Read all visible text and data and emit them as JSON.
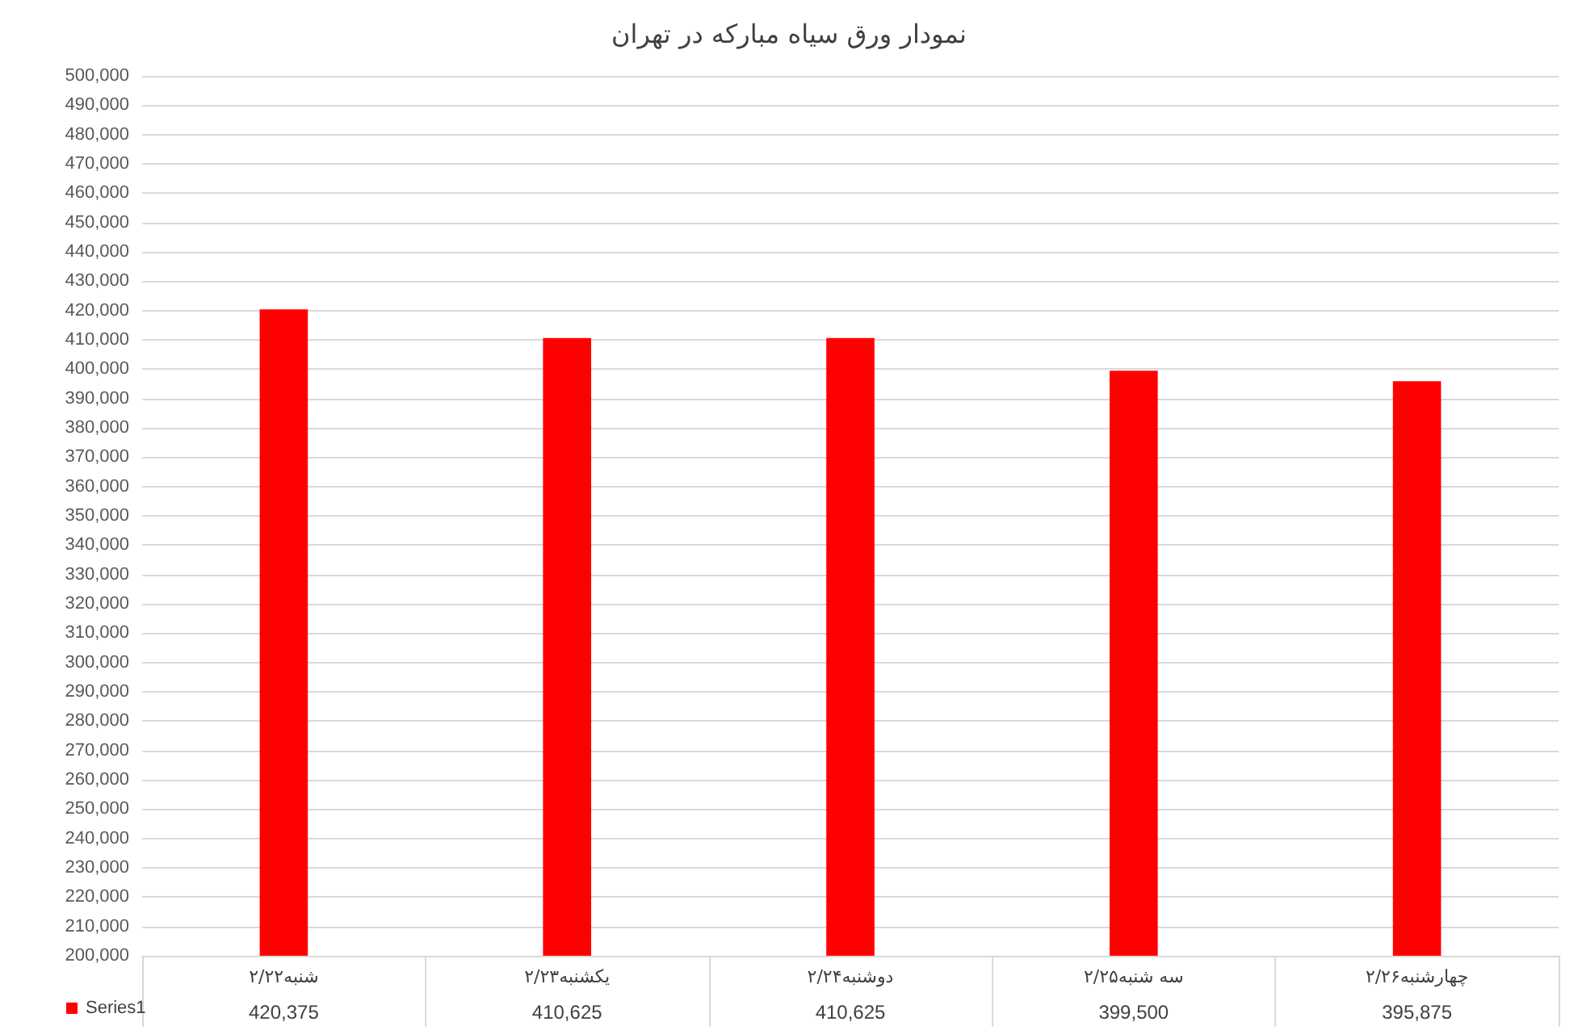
{
  "chart_data": {
    "type": "bar",
    "title": "نمودار ورق سیاه مبارکه در تهران",
    "categories": [
      "شنبه۲/۲۲",
      "یکشنبه۲/۲۳",
      "دوشنبه۲/۲۴",
      "سه شنبه۲/۲۵",
      "چهارشنبه۲/۲۶"
    ],
    "series": [
      {
        "name": "Series1",
        "color": "#ff0000",
        "values": [
          420375,
          410625,
          410625,
          399500,
          395875
        ],
        "value_labels": [
          "420,375",
          "410,625",
          "410,625",
          "399,500",
          "395,875"
        ]
      }
    ],
    "ylim": [
      200000,
      500000
    ],
    "yticks": [
      {
        "value": 200000,
        "label": "200,000"
      },
      {
        "value": 210000,
        "label": "210,000"
      },
      {
        "value": 220000,
        "label": "220,000"
      },
      {
        "value": 230000,
        "label": "230,000"
      },
      {
        "value": 240000,
        "label": "240,000"
      },
      {
        "value": 250000,
        "label": "250,000"
      },
      {
        "value": 260000,
        "label": "260,000"
      },
      {
        "value": 270000,
        "label": "270,000"
      },
      {
        "value": 280000,
        "label": "280,000"
      },
      {
        "value": 290000,
        "label": "290,000"
      },
      {
        "value": 300000,
        "label": "300,000"
      },
      {
        "value": 310000,
        "label": "310,000"
      },
      {
        "value": 320000,
        "label": "320,000"
      },
      {
        "value": 330000,
        "label": "330,000"
      },
      {
        "value": 340000,
        "label": "340,000"
      },
      {
        "value": 350000,
        "label": "350,000"
      },
      {
        "value": 360000,
        "label": "360,000"
      },
      {
        "value": 370000,
        "label": "370,000"
      },
      {
        "value": 380000,
        "label": "380,000"
      },
      {
        "value": 390000,
        "label": "390,000"
      },
      {
        "value": 400000,
        "label": "400,000"
      },
      {
        "value": 410000,
        "label": "410,000"
      },
      {
        "value": 420000,
        "label": "420,000"
      },
      {
        "value": 430000,
        "label": "430,000"
      },
      {
        "value": 440000,
        "label": "440,000"
      },
      {
        "value": 450000,
        "label": "450,000"
      },
      {
        "value": 460000,
        "label": "460,000"
      },
      {
        "value": 470000,
        "label": "470,000"
      },
      {
        "value": 480000,
        "label": "480,000"
      },
      {
        "value": 490000,
        "label": "490,000"
      },
      {
        "value": 500000,
        "label": "500,000"
      }
    ],
    "grid": "y",
    "legend": "bottom left"
  }
}
